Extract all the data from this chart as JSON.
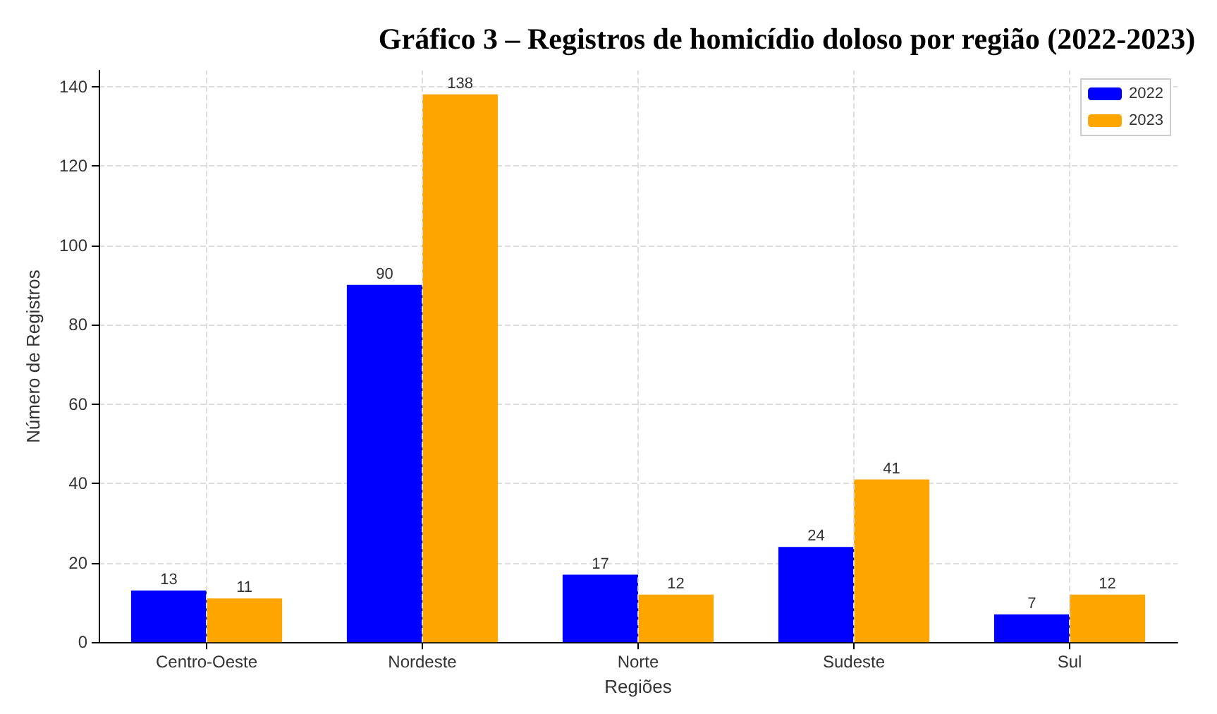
{
  "chart_data": {
    "type": "bar",
    "title": "Gráfico 3 – Registros de homicídio doloso por região (2022-2023)",
    "xlabel": "Regiões",
    "ylabel": "Número de Registros",
    "categories": [
      "Centro-Oeste",
      "Nordeste",
      "Norte",
      "Sudeste",
      "Sul"
    ],
    "series": [
      {
        "name": "2022",
        "color": "#0000ff",
        "values": [
          13,
          90,
          17,
          24,
          7
        ]
      },
      {
        "name": "2023",
        "color": "#ffa500",
        "values": [
          11,
          138,
          12,
          41,
          12
        ]
      }
    ],
    "ylim": [
      0,
      144
    ],
    "yticks": [
      0,
      20,
      40,
      60,
      80,
      100,
      120,
      140
    ],
    "grid": true,
    "legend": "top right",
    "data_labels": true
  }
}
